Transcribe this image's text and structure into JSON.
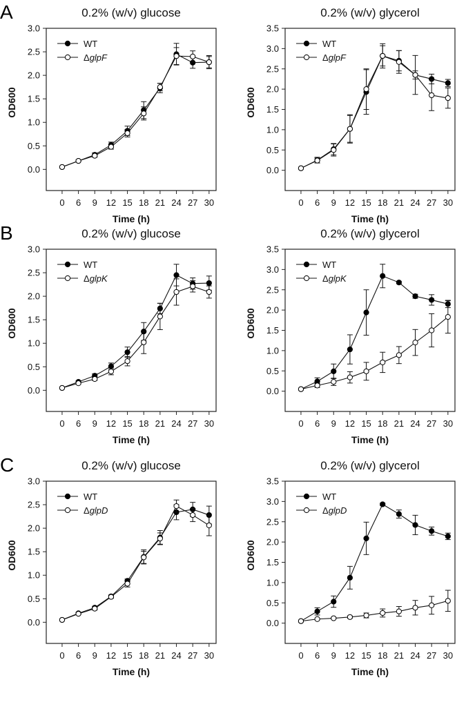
{
  "chart_data": [
    {
      "type": "line",
      "panel": "A",
      "title": "0.2% (w/v) glucose",
      "xlabel": "Time (h)",
      "ylabel": "OD600",
      "x": [
        0,
        6,
        9,
        12,
        15,
        18,
        21,
        24,
        27,
        30
      ],
      "ylim": [
        -0.45,
        3.0
      ],
      "yticks": [
        0.0,
        0.5,
        1.0,
        1.5,
        2.0,
        2.5,
        3.0
      ],
      "legend": "top-left",
      "grid": false,
      "series": [
        {
          "name": "WT",
          "marker": "filled",
          "values": [
            0.05,
            0.18,
            0.31,
            0.52,
            0.82,
            1.26,
            1.73,
            2.45,
            2.27,
            2.28
          ],
          "err": [
            0.01,
            0.02,
            0.04,
            0.06,
            0.1,
            0.18,
            0.1,
            0.23,
            0.12,
            0.14
          ]
        },
        {
          "name": "ΔglpF",
          "marker": "open",
          "values": [
            0.05,
            0.18,
            0.29,
            0.48,
            0.77,
            1.19,
            1.75,
            2.41,
            2.4,
            2.28
          ],
          "err": [
            0.01,
            0.02,
            0.03,
            0.05,
            0.08,
            0.14,
            0.08,
            0.18,
            0.12,
            0.12
          ]
        }
      ]
    },
    {
      "type": "line",
      "panel": "",
      "title": "0.2% (w/v) glycerol",
      "xlabel": "Time (h)",
      "ylabel": "OD600",
      "x": [
        0,
        6,
        9,
        12,
        15,
        18,
        21,
        24,
        27,
        30
      ],
      "ylim": [
        -0.5,
        3.5
      ],
      "yticks": [
        0.0,
        0.5,
        1.0,
        1.5,
        2.0,
        2.5,
        3.0,
        3.5
      ],
      "legend": "top-left",
      "grid": false,
      "series": [
        {
          "name": "WT",
          "marker": "filled",
          "values": [
            0.05,
            0.25,
            0.52,
            1.02,
            1.93,
            2.82,
            2.7,
            2.35,
            2.25,
            2.15
          ],
          "err": [
            0.01,
            0.07,
            0.14,
            0.35,
            0.55,
            0.3,
            0.25,
            0.1,
            0.12,
            0.09
          ]
        },
        {
          "name": "ΔglpF",
          "marker": "open",
          "values": [
            0.05,
            0.24,
            0.5,
            1.02,
            2.0,
            2.82,
            2.67,
            2.35,
            1.85,
            1.78
          ],
          "err": [
            0.01,
            0.06,
            0.15,
            0.33,
            0.5,
            0.25,
            0.28,
            0.48,
            0.38,
            0.25
          ]
        }
      ]
    },
    {
      "type": "line",
      "panel": "B",
      "title": "0.2% (w/v) glucose",
      "xlabel": "Time (h)",
      "ylabel": "OD600",
      "x": [
        0,
        6,
        9,
        12,
        15,
        18,
        21,
        24,
        27,
        30
      ],
      "ylim": [
        -0.45,
        3.0
      ],
      "yticks": [
        0.0,
        0.5,
        1.0,
        1.5,
        2.0,
        2.5,
        3.0
      ],
      "legend": "top-left",
      "grid": false,
      "series": [
        {
          "name": "WT",
          "marker": "filled",
          "values": [
            0.05,
            0.18,
            0.31,
            0.51,
            0.81,
            1.25,
            1.74,
            2.45,
            2.27,
            2.28
          ],
          "err": [
            0.01,
            0.02,
            0.04,
            0.07,
            0.11,
            0.19,
            0.11,
            0.23,
            0.12,
            0.15
          ]
        },
        {
          "name": "ΔglpK",
          "marker": "open",
          "values": [
            0.05,
            0.15,
            0.24,
            0.4,
            0.62,
            1.02,
            1.57,
            2.09,
            2.21,
            2.09
          ],
          "err": [
            0.01,
            0.02,
            0.03,
            0.07,
            0.1,
            0.24,
            0.28,
            0.28,
            0.12,
            0.13
          ]
        }
      ]
    },
    {
      "type": "line",
      "panel": "",
      "title": "0.2% (w/v) glycerol",
      "xlabel": "Time (h)",
      "ylabel": "OD600",
      "x": [
        0,
        6,
        9,
        12,
        15,
        18,
        21,
        24,
        27,
        30
      ],
      "ylim": [
        -0.5,
        3.5
      ],
      "yticks": [
        0.0,
        0.5,
        1.0,
        1.5,
        2.0,
        2.5,
        3.0,
        3.5
      ],
      "legend": "top-left",
      "grid": false,
      "series": [
        {
          "name": "WT",
          "marker": "filled",
          "values": [
            0.05,
            0.24,
            0.49,
            1.03,
            1.94,
            2.84,
            2.68,
            2.34,
            2.25,
            2.15
          ],
          "err": [
            0.01,
            0.09,
            0.18,
            0.36,
            0.56,
            0.29,
            0.03,
            0.05,
            0.13,
            0.09
          ]
        },
        {
          "name": "ΔglpK",
          "marker": "open",
          "values": [
            0.05,
            0.14,
            0.23,
            0.34,
            0.49,
            0.71,
            0.89,
            1.2,
            1.5,
            1.83
          ],
          "err": [
            0.01,
            0.05,
            0.09,
            0.14,
            0.22,
            0.25,
            0.21,
            0.32,
            0.41,
            0.4
          ]
        }
      ]
    },
    {
      "type": "line",
      "panel": "C",
      "title": "0.2% (w/v) glucose",
      "xlabel": "Time (h)",
      "ylabel": "OD600",
      "x": [
        0,
        6,
        9,
        12,
        15,
        18,
        21,
        24,
        27,
        30
      ],
      "ylim": [
        -0.45,
        3.0
      ],
      "yticks": [
        0.0,
        0.5,
        1.0,
        1.5,
        2.0,
        2.5,
        3.0
      ],
      "legend": "top-left",
      "grid": false,
      "series": [
        {
          "name": "WT",
          "marker": "filled",
          "values": [
            0.05,
            0.19,
            0.31,
            0.55,
            0.88,
            1.39,
            1.8,
            2.34,
            2.4,
            2.28
          ],
          "err": [
            0.01,
            0.02,
            0.03,
            0.03,
            0.04,
            0.15,
            0.15,
            0.16,
            0.15,
            0.19
          ]
        },
        {
          "name": "ΔglpD",
          "marker": "open",
          "values": [
            0.05,
            0.18,
            0.29,
            0.54,
            0.82,
            1.38,
            1.78,
            2.47,
            2.28,
            2.06
          ],
          "err": [
            0.01,
            0.02,
            0.03,
            0.03,
            0.07,
            0.13,
            0.12,
            0.13,
            0.14,
            0.22
          ]
        }
      ]
    },
    {
      "type": "line",
      "panel": "",
      "title": "0.2% (w/v) glycerol",
      "xlabel": "Time (h)",
      "ylabel": "OD600",
      "x": [
        0,
        6,
        9,
        12,
        15,
        18,
        21,
        24,
        27,
        30
      ],
      "ylim": [
        -0.5,
        3.5
      ],
      "yticks": [
        0.0,
        0.5,
        1.0,
        1.5,
        2.0,
        2.5,
        3.0,
        3.5
      ],
      "legend": "top-left",
      "grid": false,
      "series": [
        {
          "name": "WT",
          "marker": "filled",
          "values": [
            0.05,
            0.29,
            0.53,
            1.12,
            2.09,
            2.93,
            2.69,
            2.42,
            2.27,
            2.14
          ],
          "err": [
            0.01,
            0.09,
            0.14,
            0.28,
            0.4,
            0.03,
            0.1,
            0.24,
            0.1,
            0.08
          ]
        },
        {
          "name": "ΔglpD",
          "marker": "open",
          "values": [
            0.05,
            0.1,
            0.12,
            0.15,
            0.19,
            0.25,
            0.29,
            0.38,
            0.44,
            0.55
          ],
          "err": [
            0.01,
            0.01,
            0.02,
            0.03,
            0.06,
            0.1,
            0.12,
            0.18,
            0.22,
            0.26
          ]
        }
      ]
    }
  ]
}
